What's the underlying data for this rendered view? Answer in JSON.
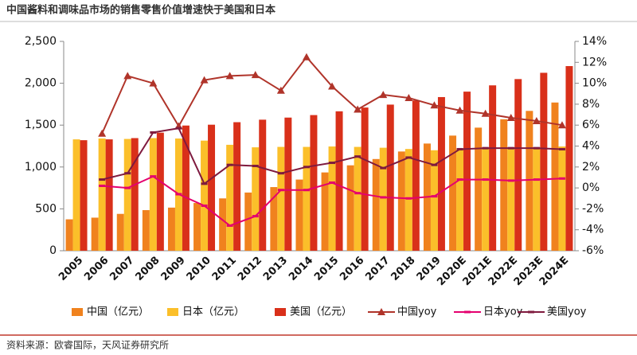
{
  "chart_data": {
    "type": "bar",
    "title": "中国酱料和调味品市场的销售零售价值增速快于美国和日本",
    "source": "资料来源：欧睿国际，天风证券研究所",
    "categories": [
      "2005",
      "2006",
      "2007",
      "2008",
      "2009",
      "2010",
      "2011",
      "2012",
      "2013",
      "2014",
      "2015",
      "2016",
      "2017",
      "2018",
      "2019",
      "2020E",
      "2021E",
      "2022E",
      "2023E",
      "2024E"
    ],
    "series": [
      {
        "name": "中国（亿元）",
        "type": "bar",
        "color": "#f0821e",
        "values": [
          375,
          395,
          440,
          485,
          515,
          570,
          625,
          695,
          760,
          850,
          935,
          1020,
          1095,
          1185,
          1280,
          1375,
          1470,
          1570,
          1670,
          1770
        ]
      },
      {
        "name": "日本（亿元）",
        "type": "bar",
        "color": "#fbbf2a",
        "values": [
          1330,
          1340,
          1335,
          1345,
          1340,
          1315,
          1265,
          1235,
          1240,
          1240,
          1245,
          1240,
          1230,
          1215,
          1200,
          1210,
          1220,
          1225,
          1235,
          1245
        ]
      },
      {
        "name": "美国（亿元）",
        "type": "bar",
        "color": "#d9301a",
        "values": [
          1320,
          1330,
          1345,
          1410,
          1495,
          1505,
          1535,
          1565,
          1590,
          1620,
          1665,
          1710,
          1745,
          1795,
          1835,
          1900,
          1975,
          2050,
          2125,
          2205
        ]
      },
      {
        "name": "中国yoy",
        "type": "line",
        "axis": "y2",
        "marker": "triangle",
        "color": "#b0342a",
        "values": [
          null,
          5.2,
          10.7,
          10.0,
          5.9,
          10.3,
          10.7,
          10.8,
          9.3,
          12.5,
          9.7,
          7.5,
          8.9,
          8.6,
          7.9,
          7.4,
          7.1,
          6.7,
          6.4,
          6.0
        ]
      },
      {
        "name": "日本yoy",
        "type": "line",
        "axis": "y2",
        "marker": "dash",
        "color": "#e4006e",
        "values": [
          null,
          0.2,
          0.0,
          1.1,
          -0.6,
          -1.7,
          -3.6,
          -2.7,
          -0.2,
          -0.2,
          0.5,
          -0.5,
          -0.9,
          -1.0,
          -0.8,
          0.8,
          0.8,
          0.7,
          0.8,
          0.9
        ]
      },
      {
        "name": "美国yoy",
        "type": "line",
        "axis": "y2",
        "marker": "dash",
        "color": "#7f1a3e",
        "values": [
          null,
          0.8,
          1.4,
          5.3,
          5.7,
          0.4,
          2.2,
          2.1,
          1.4,
          2.0,
          2.4,
          3.0,
          1.9,
          2.9,
          2.2,
          3.7,
          3.8,
          3.8,
          3.8,
          3.7
        ]
      }
    ],
    "ylim": [
      0,
      2500
    ],
    "yticks": [
      0,
      500,
      {
        "value": 1000,
        "label": "1,000"
      },
      {
        "value": 1500,
        "label": "1,500"
      },
      {
        "value": 2000,
        "label": "2,000"
      },
      {
        "value": 2500,
        "label": "2,500"
      }
    ],
    "y2lim": [
      -6,
      14
    ],
    "y2ticks": [
      {
        "value": -6,
        "label": "-6%"
      },
      {
        "value": -4,
        "label": "-4%"
      },
      {
        "value": -2,
        "label": "-2%"
      },
      {
        "value": 0,
        "label": "0%"
      },
      {
        "value": 2,
        "label": "2%"
      },
      {
        "value": 4,
        "label": "4%"
      },
      {
        "value": 6,
        "label": "6%"
      },
      {
        "value": 8,
        "label": "8%"
      },
      {
        "value": 10,
        "label": "10%"
      },
      {
        "value": 12,
        "label": "12%"
      },
      {
        "value": 14,
        "label": "14%"
      }
    ],
    "legend": "bottom"
  }
}
